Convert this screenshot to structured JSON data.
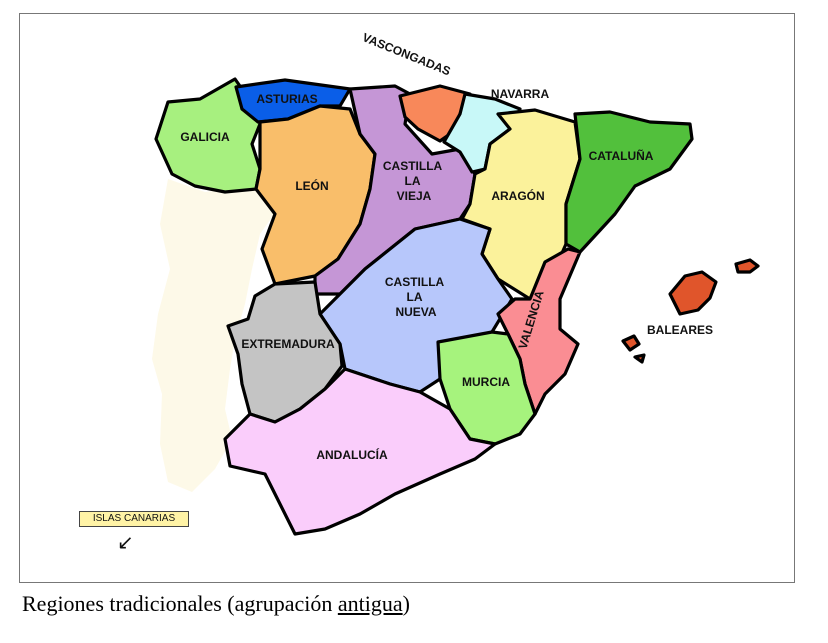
{
  "map": {
    "regions": [
      {
        "id": "galicia",
        "label": "GALICIA",
        "color": "#a7f07f"
      },
      {
        "id": "asturias",
        "label": "ASTURIAS",
        "color": "#0a5ee8"
      },
      {
        "id": "vascongadas",
        "label": "VASCONGADAS",
        "color": "#f8885a"
      },
      {
        "id": "navarra",
        "label": "NAVARRA",
        "color": "#c8f8f8"
      },
      {
        "id": "leon",
        "label": "LEÓN",
        "color": "#f9be6a"
      },
      {
        "id": "castilla_vieja",
        "label": "CASTILLA LA VIEJA",
        "color": "#c596d6"
      },
      {
        "id": "aragon",
        "label": "ARAGÓN",
        "color": "#fbf29b"
      },
      {
        "id": "cataluna",
        "label": "CATALUÑA",
        "color": "#52c03c"
      },
      {
        "id": "castilla_nueva",
        "label": "CASTILLA LA NUEVA",
        "color": "#b7c7fb"
      },
      {
        "id": "extremadura",
        "label": "EXTREMADURA",
        "color": "#c4c4c4"
      },
      {
        "id": "valencia",
        "label": "VALENCIA",
        "color": "#fa8d93"
      },
      {
        "id": "murcia",
        "label": "MURCIA",
        "color": "#a6f37d"
      },
      {
        "id": "andalucia",
        "label": "ANDALUCÍA",
        "color": "#facdfb"
      },
      {
        "id": "baleares",
        "label": "BALEARES",
        "color": "#e0552b"
      }
    ],
    "portugal_color": "#fdf9e8",
    "canarias_label": "ISLAS CANARIAS",
    "canarias_arrow": "↙"
  },
  "caption": {
    "text": "Regiones tradicionales (agrupación ",
    "underlined": "antigua",
    "end": ")"
  }
}
